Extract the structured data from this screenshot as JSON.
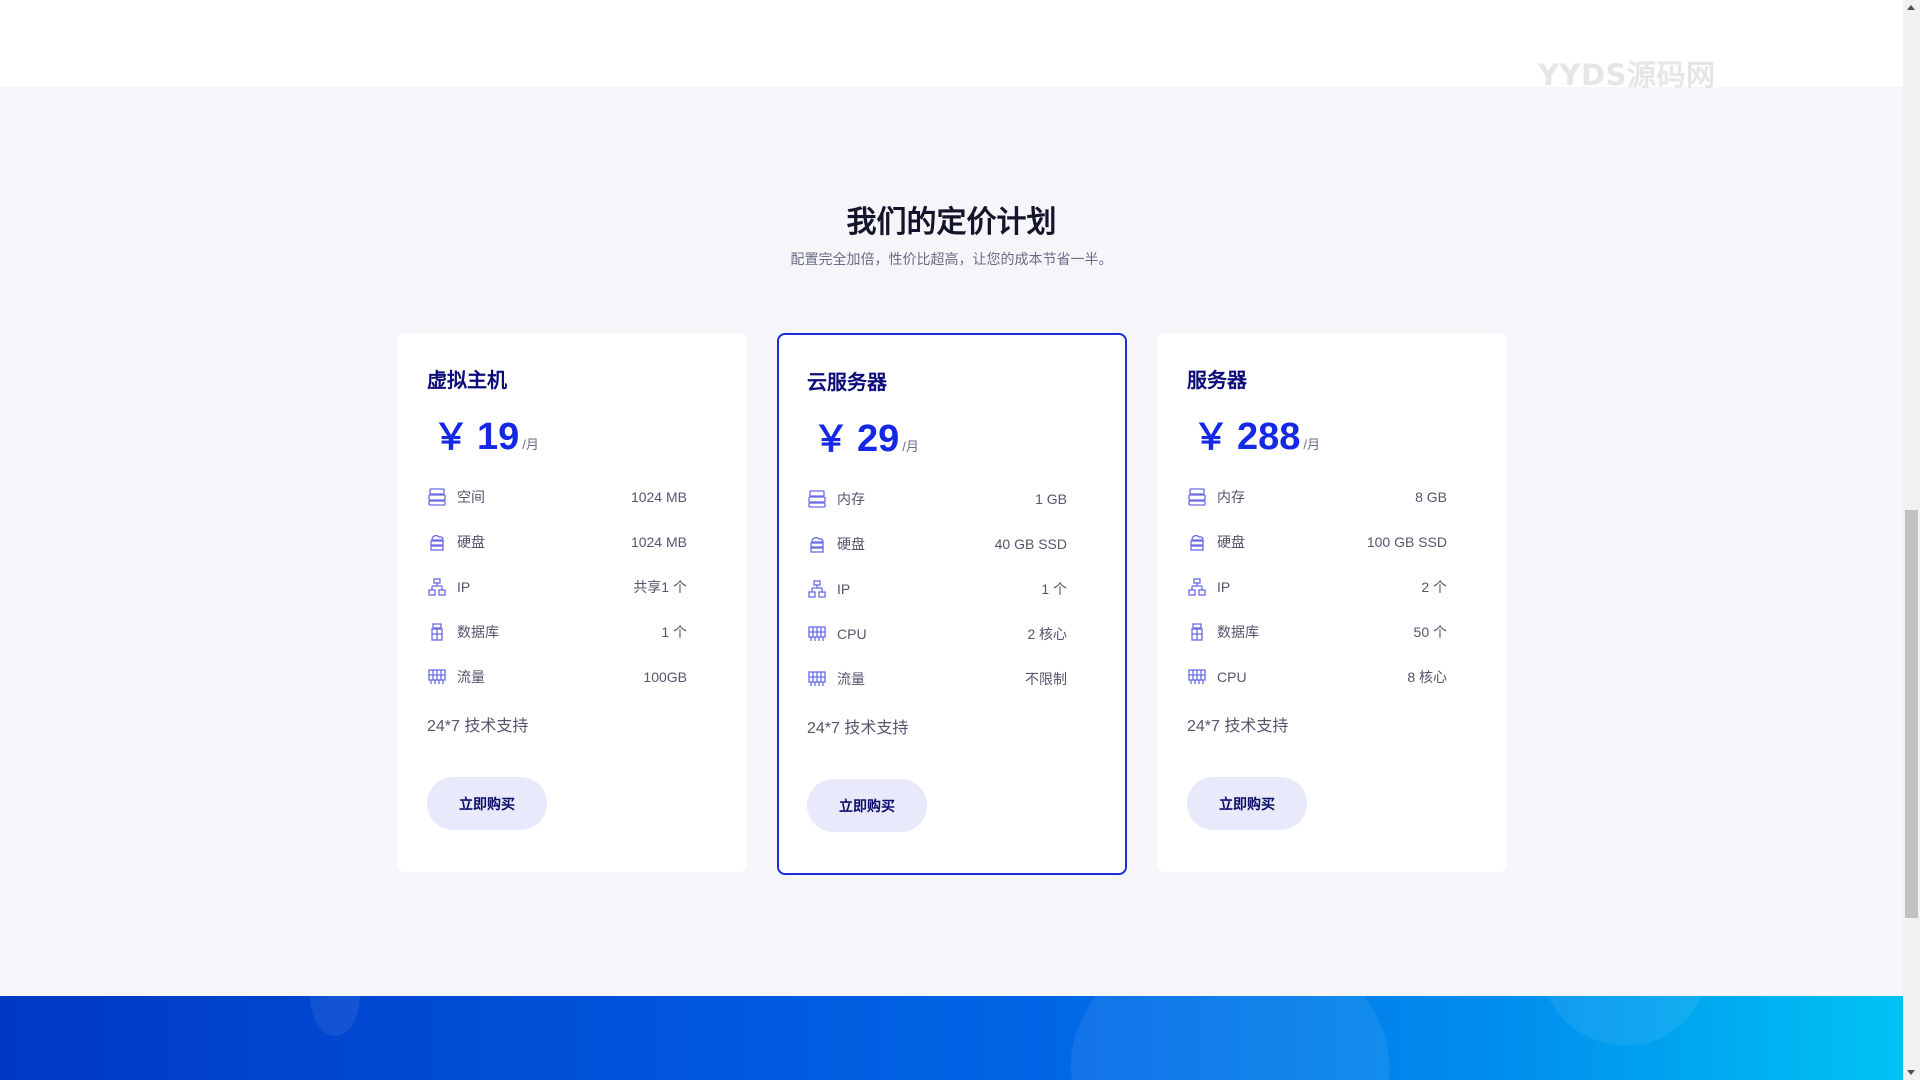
{
  "watermark": "YYDS源码网",
  "section": {
    "title": "我们的定价计划",
    "subtitle": "配置完全加倍，性价比超高，让您的成本节省一半。"
  },
  "colors": {
    "accent": "#1428e6",
    "title": "#0c0c7a",
    "button_bg": "#e8e9fb",
    "featured_border": "#1a2dd6"
  },
  "plans": [
    {
      "name": "虚拟主机",
      "currency": "￥",
      "price": "19",
      "unit": "/月",
      "features": [
        {
          "icon": "server-icon",
          "label": "空间",
          "value": "1024 MB"
        },
        {
          "icon": "cloud-storage-icon",
          "label": "硬盘",
          "value": "1024 MB"
        },
        {
          "icon": "network-icon",
          "label": "IP",
          "value": "共享1 个"
        },
        {
          "icon": "database-icon",
          "label": "数据库",
          "value": "1 个"
        },
        {
          "icon": "traffic-icon",
          "label": "流量",
          "value": "100GB"
        }
      ],
      "support": "24*7 技术支持",
      "button": "立即购买",
      "featured": false
    },
    {
      "name": "云服务器",
      "currency": "￥",
      "price": "29",
      "unit": "/月",
      "features": [
        {
          "icon": "server-icon",
          "label": "内存",
          "value": "1 GB"
        },
        {
          "icon": "cloud-storage-icon",
          "label": "硬盘",
          "value": "40 GB SSD"
        },
        {
          "icon": "network-icon",
          "label": "IP",
          "value": "1 个"
        },
        {
          "icon": "cpu-icon",
          "label": "CPU",
          "value": "2 核心"
        },
        {
          "icon": "traffic-icon",
          "label": "流量",
          "value": "不限制"
        }
      ],
      "support": "24*7 技术支持",
      "button": "立即购买",
      "featured": true
    },
    {
      "name": "服务器",
      "currency": "￥",
      "price": "288",
      "unit": "/月",
      "features": [
        {
          "icon": "server-icon",
          "label": "内存",
          "value": "8 GB"
        },
        {
          "icon": "cloud-storage-icon",
          "label": "硬盘",
          "value": "100 GB SSD"
        },
        {
          "icon": "network-icon",
          "label": "IP",
          "value": "2 个"
        },
        {
          "icon": "database-icon",
          "label": "数据库",
          "value": "50 个"
        },
        {
          "icon": "cpu-icon",
          "label": "CPU",
          "value": "8 核心"
        }
      ],
      "support": "24*7 技术支持",
      "button": "立即购买",
      "featured": false
    }
  ]
}
